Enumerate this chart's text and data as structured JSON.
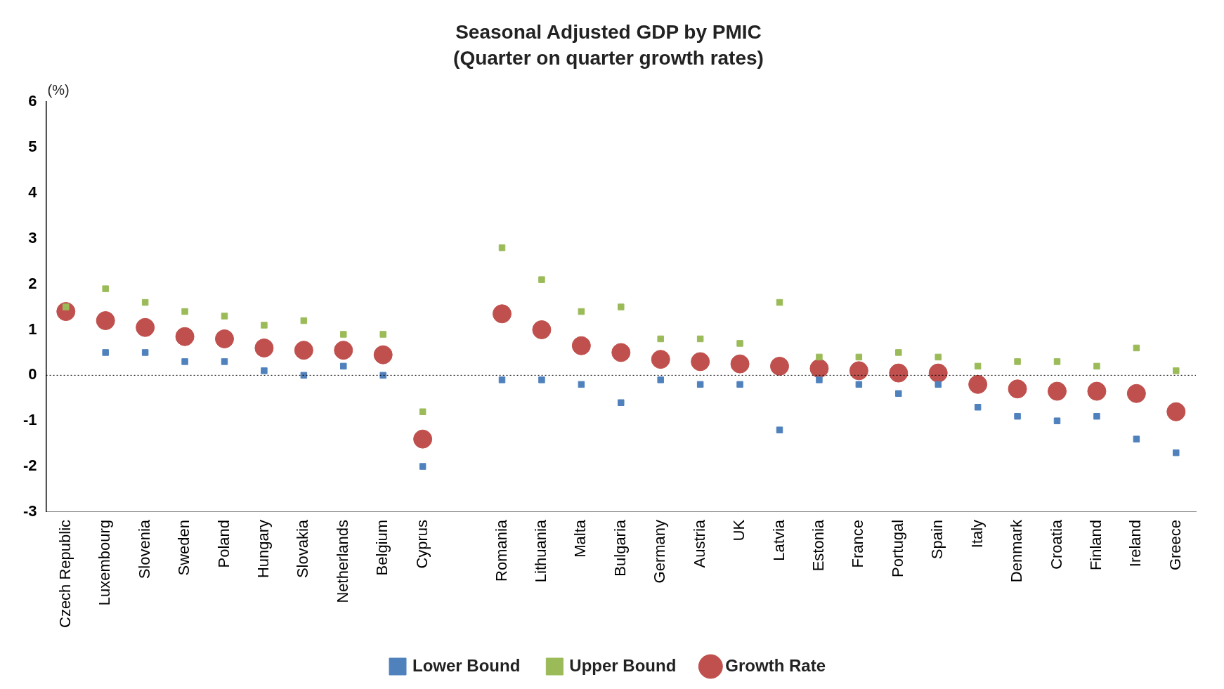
{
  "chart_data": {
    "type": "scatter",
    "title": "Seasonal Adjusted GDP by PMIC",
    "subtitle": "(Quarter on quarter growth rates)",
    "ylabel": "(%)",
    "categories": [
      "Czech Republic",
      "Luxembourg",
      "Slovenia",
      "Sweden",
      "Poland",
      "Hungary",
      "Slovakia",
      "Netherlands",
      "Belgium",
      "Cyprus",
      null,
      "Romania",
      "Lithuania",
      "Malta",
      "Bulgaria",
      "Germany",
      "Austria",
      "UK",
      "Latvia",
      "Estonia",
      "France",
      "Portugal",
      "Spain",
      "Italy",
      "Denmark",
      "Croatia",
      "Finland",
      "Ireland",
      "Greece"
    ],
    "series": [
      {
        "name": "Lower Bound",
        "color": "#4f81bd",
        "marker": "square",
        "values": [
          null,
          0.5,
          0.5,
          0.3,
          0.3,
          0.1,
          0.0,
          0.2,
          0.0,
          -2.0,
          null,
          -0.1,
          -0.1,
          -0.2,
          -0.6,
          -0.1,
          -0.2,
          -0.2,
          -1.2,
          -0.1,
          -0.2,
          -0.4,
          -0.2,
          -0.7,
          -0.9,
          -1.0,
          -0.9,
          -1.4,
          -1.7
        ]
      },
      {
        "name": "Growth Rate",
        "color": "#c0504d",
        "marker": "circle",
        "values": [
          1.4,
          1.2,
          1.05,
          0.85,
          0.8,
          0.6,
          0.55,
          0.55,
          0.45,
          -1.4,
          null,
          1.35,
          1.0,
          0.65,
          0.5,
          0.35,
          0.3,
          0.25,
          0.2,
          0.15,
          0.1,
          0.05,
          0.05,
          -0.2,
          -0.3,
          -0.35,
          -0.35,
          -0.4,
          -0.8
        ]
      },
      {
        "name": "Upper Bound",
        "color": "#9bbb59",
        "marker": "square",
        "values": [
          1.5,
          1.9,
          1.6,
          1.4,
          1.3,
          1.1,
          1.2,
          0.9,
          0.9,
          -0.8,
          null,
          2.8,
          2.1,
          1.4,
          1.5,
          0.8,
          0.8,
          0.7,
          1.6,
          0.4,
          0.4,
          0.5,
          0.4,
          0.2,
          0.3,
          0.3,
          0.2,
          0.6,
          0.1
        ]
      }
    ],
    "ylim": [
      -3,
      6
    ],
    "yticks": [
      -3,
      -2,
      -1,
      0,
      1,
      2,
      3,
      4,
      5,
      6
    ],
    "grid": false,
    "legend": "bottom",
    "ref_lines": [
      {
        "axis": "y",
        "value": 0,
        "line_style": "dotted",
        "color": "#000000"
      }
    ]
  }
}
